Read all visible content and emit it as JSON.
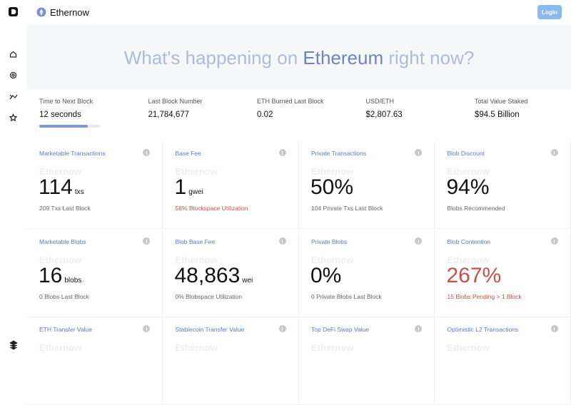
{
  "header": {
    "brand": "Ethernow",
    "login": "Login"
  },
  "hero": {
    "title_before": "What's happening on ",
    "title_em": "Ethereum",
    "title_after": " right now?"
  },
  "stats": [
    {
      "label": "Time to Next Block",
      "value": "12 seconds"
    },
    {
      "label": "Last Block Number",
      "value": "21,784,677"
    },
    {
      "label": "ETH Burned Last Block",
      "value": "0.02"
    },
    {
      "label": "USD/ETH",
      "value": "$2,807.63"
    },
    {
      "label": "Total Value Staked",
      "value": "$94.5 Billion"
    }
  ],
  "progress": 80,
  "cards": [
    {
      "label": "Marketable Transactions",
      "watermark": "Ethernow",
      "value": "114",
      "unit": "txs",
      "subtitle": "209 Txs Last Block"
    },
    {
      "label": "Base Fee",
      "watermark": "Ethernow",
      "value": "1",
      "unit": "gwei",
      "subtitle": "58% Blockspace Utilization",
      "subtitle_alert": true
    },
    {
      "label": "Private Transactions",
      "watermark": "Ethernow",
      "value": "50%",
      "subtitle": "104 Private Txs Last Block"
    },
    {
      "label": "Blob Discount",
      "watermark": "Ethernow",
      "value": "94%",
      "subtitle": "Blobs Recommended"
    },
    {
      "label": "Marketable Blobs",
      "watermark": "Ethernow",
      "value": "16",
      "unit": "blobs",
      "subtitle": "0 Blobs Last Block"
    },
    {
      "label": "Blob Base Fee",
      "watermark": "Ethernow",
      "value": "48,863",
      "unit": "wei",
      "subtitle": "0% Blobspace Utilization"
    },
    {
      "label": "Private Blobs",
      "watermark": "Ethernow",
      "value": "0%",
      "subtitle": "0 Private Blobs Last Block"
    },
    {
      "label": "Blob Contention",
      "watermark": "Ethernow",
      "value": "267%",
      "subtitle": "15 Blobs Pending > 1 Block",
      "value_alert": true,
      "subtitle_alert": true
    },
    {
      "label": "ETH Transfer Value",
      "watermark": "Ethernow"
    },
    {
      "label": "Stablecoin Transfer Value",
      "watermark": "Ethernow"
    },
    {
      "label": "Top DeFi Swap Value",
      "watermark": "Ethernow"
    },
    {
      "label": "Optimistic L2 Transactions",
      "watermark": "Ethernow"
    }
  ]
}
